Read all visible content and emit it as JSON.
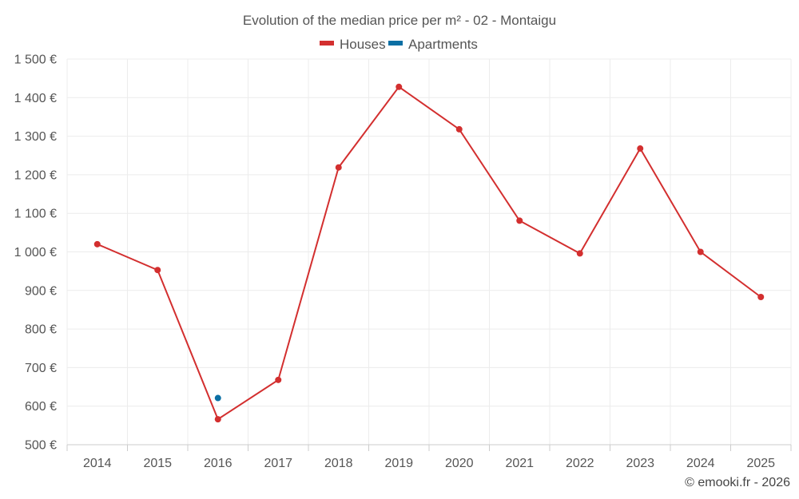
{
  "chart_data": {
    "type": "line",
    "title": "Evolution of the median price per m² - 02 - Montaigu",
    "categories": [
      "2014",
      "2015",
      "2016",
      "2017",
      "2018",
      "2019",
      "2020",
      "2021",
      "2022",
      "2023",
      "2024",
      "2025"
    ],
    "series": [
      {
        "name": "Houses",
        "color": "#d32f2f",
        "values": [
          1020,
          953,
          566,
          668,
          1219,
          1428,
          1318,
          1081,
          996,
          1268,
          1000,
          883
        ]
      },
      {
        "name": "Apartments",
        "color": "#0b6fa4",
        "values": [
          null,
          null,
          621,
          null,
          null,
          null,
          null,
          null,
          null,
          null,
          null,
          null
        ]
      }
    ],
    "yticks": [
      500,
      600,
      700,
      800,
      900,
      1000,
      1100,
      1200,
      1300,
      1400,
      1500
    ],
    "ytick_labels": [
      "500 €",
      "600 €",
      "700 €",
      "800 €",
      "900 €",
      "1 000 €",
      "1 100 €",
      "1 200 €",
      "1 300 €",
      "1 400 €",
      "1 500 €"
    ],
    "ylim": [
      500,
      1500
    ],
    "grid": true,
    "legend_position": "top-center"
  },
  "credit": "© emooki.fr - 2026"
}
